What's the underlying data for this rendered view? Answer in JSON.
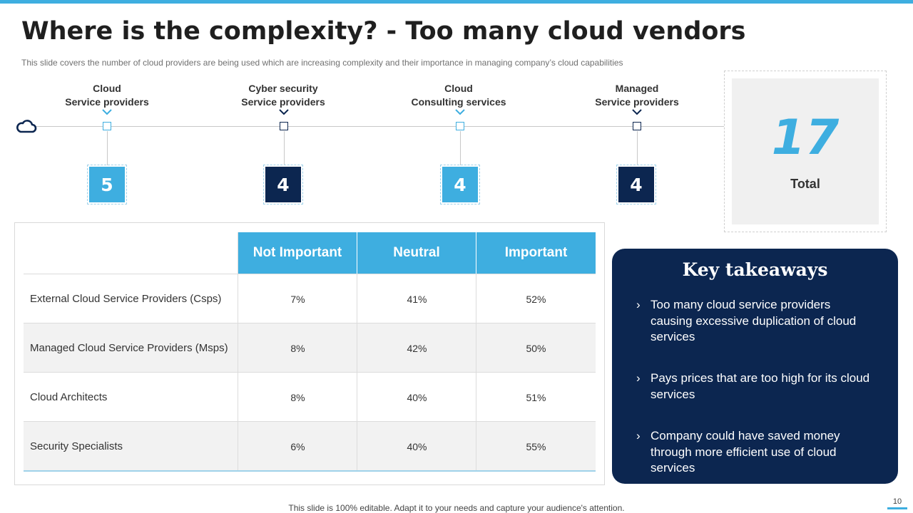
{
  "slide": {
    "title": "Where is the complexity? - Too many cloud vendors",
    "subtitle": "This slide covers the number of cloud providers  are being used which are increasing complexity and their importance in managing company’s cloud capabilities",
    "footer": "This slide is 100% editable. Adapt it to your needs and capture your audience's attention.",
    "page_number": "10"
  },
  "colors": {
    "accent_light": "#3eaee0",
    "accent_dark": "#0c2650"
  },
  "timeline": {
    "icon": "cloud-icon",
    "categories": [
      {
        "line1": "Cloud",
        "line2": "Service providers",
        "count": "5",
        "style": "light"
      },
      {
        "line1": "Cyber security",
        "line2": "Service providers",
        "count": "4",
        "style": "dark"
      },
      {
        "line1": "Cloud",
        "line2": "Consulting  services",
        "count": "4",
        "style": "light"
      },
      {
        "line1": "Managed",
        "line2": "Service providers",
        "count": "4",
        "style": "dark"
      }
    ]
  },
  "total": {
    "value": "17",
    "label": "Total"
  },
  "table": {
    "columns": [
      "Not Important",
      "Neutral",
      "Important"
    ],
    "rows": [
      {
        "label": "External Cloud Service Providers (Csps)",
        "values": [
          "7%",
          "41%",
          "52%"
        ]
      },
      {
        "label": "Managed Cloud Service Providers (Msps)",
        "values": [
          "8%",
          "42%",
          "50%"
        ]
      },
      {
        "label": "Cloud Architects",
        "values": [
          "8%",
          "40%",
          "51%"
        ]
      },
      {
        "label": "Security Specialists",
        "values": [
          "6%",
          "40%",
          "55%"
        ]
      }
    ]
  },
  "key_takeaways": {
    "title": "Key takeaways",
    "bullet_glyph": "›",
    "items": [
      "Too many cloud service providers causing excessive duplication of cloud services",
      "Pays prices that are too high for its cloud services",
      "Company could have saved money through more efficient use of cloud services"
    ]
  }
}
